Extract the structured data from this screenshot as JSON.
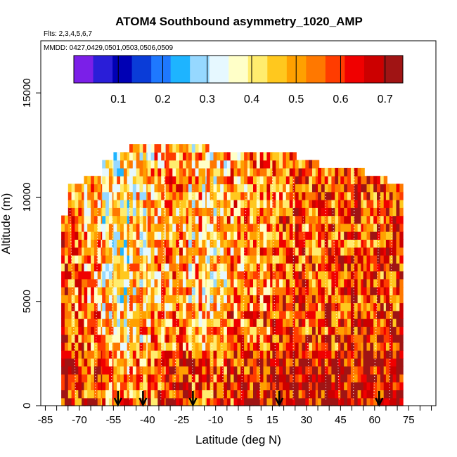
{
  "chart_data": {
    "type": "heatmap",
    "title": "ATOM4 Southbound asymmetry_1020_AMP",
    "flights_note": "Flts: 2,3,4,5,6,7",
    "dates_note": "MMDD: 0427,0429,0501,0503,0506,0509",
    "xlabel": "Latitude (deg N)",
    "ylabel": "Altitude (m)",
    "xlim": [
      -87,
      87
    ],
    "ylim": [
      0,
      17500
    ],
    "x_ticks": [
      -85,
      -70,
      -55,
      -40,
      -25,
      -10,
      5,
      15,
      30,
      45,
      60,
      75
    ],
    "x_tick_labels": [
      "-85",
      "-70",
      "-55",
      "-40",
      "-25",
      "-10",
      "5",
      "15",
      "30",
      "45",
      "60",
      "75"
    ],
    "x_minor_ticks": [
      -80,
      -75,
      -65,
      -60,
      -50,
      -45,
      -35,
      -30,
      -20,
      -15,
      -5,
      0,
      10,
      20,
      25,
      35,
      40,
      50,
      55,
      65,
      70,
      80,
      85
    ],
    "y_ticks": [
      0,
      5000,
      10000,
      15000
    ],
    "y_tick_labels": [
      "0",
      "5000",
      "10000",
      "15000"
    ],
    "colorbar": {
      "ticks": [
        0.1,
        0.2,
        0.3,
        0.4,
        0.5,
        0.6,
        0.7
      ],
      "tick_labels": [
        "0.1",
        "0.2",
        "0.3",
        "0.4",
        "0.5",
        "0.6",
        "0.7"
      ],
      "range": [
        0,
        0.74
      ],
      "colors": [
        "#7b1fe8",
        "#2a1ed8",
        "#0000b4",
        "#0a3cd8",
        "#1e78ff",
        "#1eb4ff",
        "#96d8ff",
        "#e6f8ff",
        "#ffffc8",
        "#ffec6e",
        "#ffc81e",
        "#ffa000",
        "#ff7800",
        "#ff3c00",
        "#f00000",
        "#cc0000",
        "#a01414"
      ]
    },
    "profile_arrows_lat": [
      -53,
      -42,
      -20,
      18,
      62
    ],
    "profile_bands": [
      {
        "lat_min": -78,
        "lat_max": -75,
        "alt_min": 0,
        "alt_max": 8800,
        "value": 0.58
      },
      {
        "lat_min": -75,
        "lat_max": -68,
        "alt_min": 0,
        "alt_max": 10500,
        "value": 0.52
      },
      {
        "lat_min": -68,
        "lat_max": -60,
        "alt_min": 0,
        "alt_max": 10900,
        "value": 0.48
      },
      {
        "lat_min": -60,
        "lat_max": -55,
        "alt_min": 0,
        "alt_max": 11500,
        "value": 0.42
      },
      {
        "lat_min": -55,
        "lat_max": -48,
        "alt_min": 0,
        "alt_max": 12000,
        "value": 0.4
      },
      {
        "lat_min": -48,
        "lat_max": -40,
        "alt_min": 0,
        "alt_max": 12400,
        "value": 0.44
      },
      {
        "lat_min": -40,
        "lat_max": -32,
        "alt_min": 0,
        "alt_max": 12400,
        "value": 0.47
      },
      {
        "lat_min": -32,
        "lat_max": -22,
        "alt_min": 0,
        "alt_max": 12400,
        "value": 0.5
      },
      {
        "lat_min": -22,
        "lat_max": -14,
        "alt_min": 0,
        "alt_max": 12400,
        "value": 0.46
      },
      {
        "lat_min": -14,
        "lat_max": -5,
        "alt_min": 0,
        "alt_max": 12000,
        "value": 0.44
      },
      {
        "lat_min": -5,
        "lat_max": 5,
        "alt_min": 0,
        "alt_max": 12000,
        "value": 0.5
      },
      {
        "lat_min": 5,
        "lat_max": 15,
        "alt_min": 0,
        "alt_max": 12000,
        "value": 0.52
      },
      {
        "lat_min": 15,
        "lat_max": 25,
        "alt_min": 0,
        "alt_max": 12000,
        "value": 0.55
      },
      {
        "lat_min": 25,
        "lat_max": 35,
        "alt_min": 0,
        "alt_max": 11600,
        "value": 0.56
      },
      {
        "lat_min": 35,
        "lat_max": 45,
        "alt_min": 0,
        "alt_max": 11400,
        "value": 0.57
      },
      {
        "lat_min": 45,
        "lat_max": 55,
        "alt_min": 0,
        "alt_max": 11400,
        "value": 0.58
      },
      {
        "lat_min": 55,
        "lat_max": 65,
        "alt_min": 0,
        "alt_max": 11000,
        "value": 0.58
      },
      {
        "lat_min": 65,
        "lat_max": 72,
        "alt_min": 0,
        "alt_max": 10500,
        "value": 0.6
      }
    ]
  }
}
